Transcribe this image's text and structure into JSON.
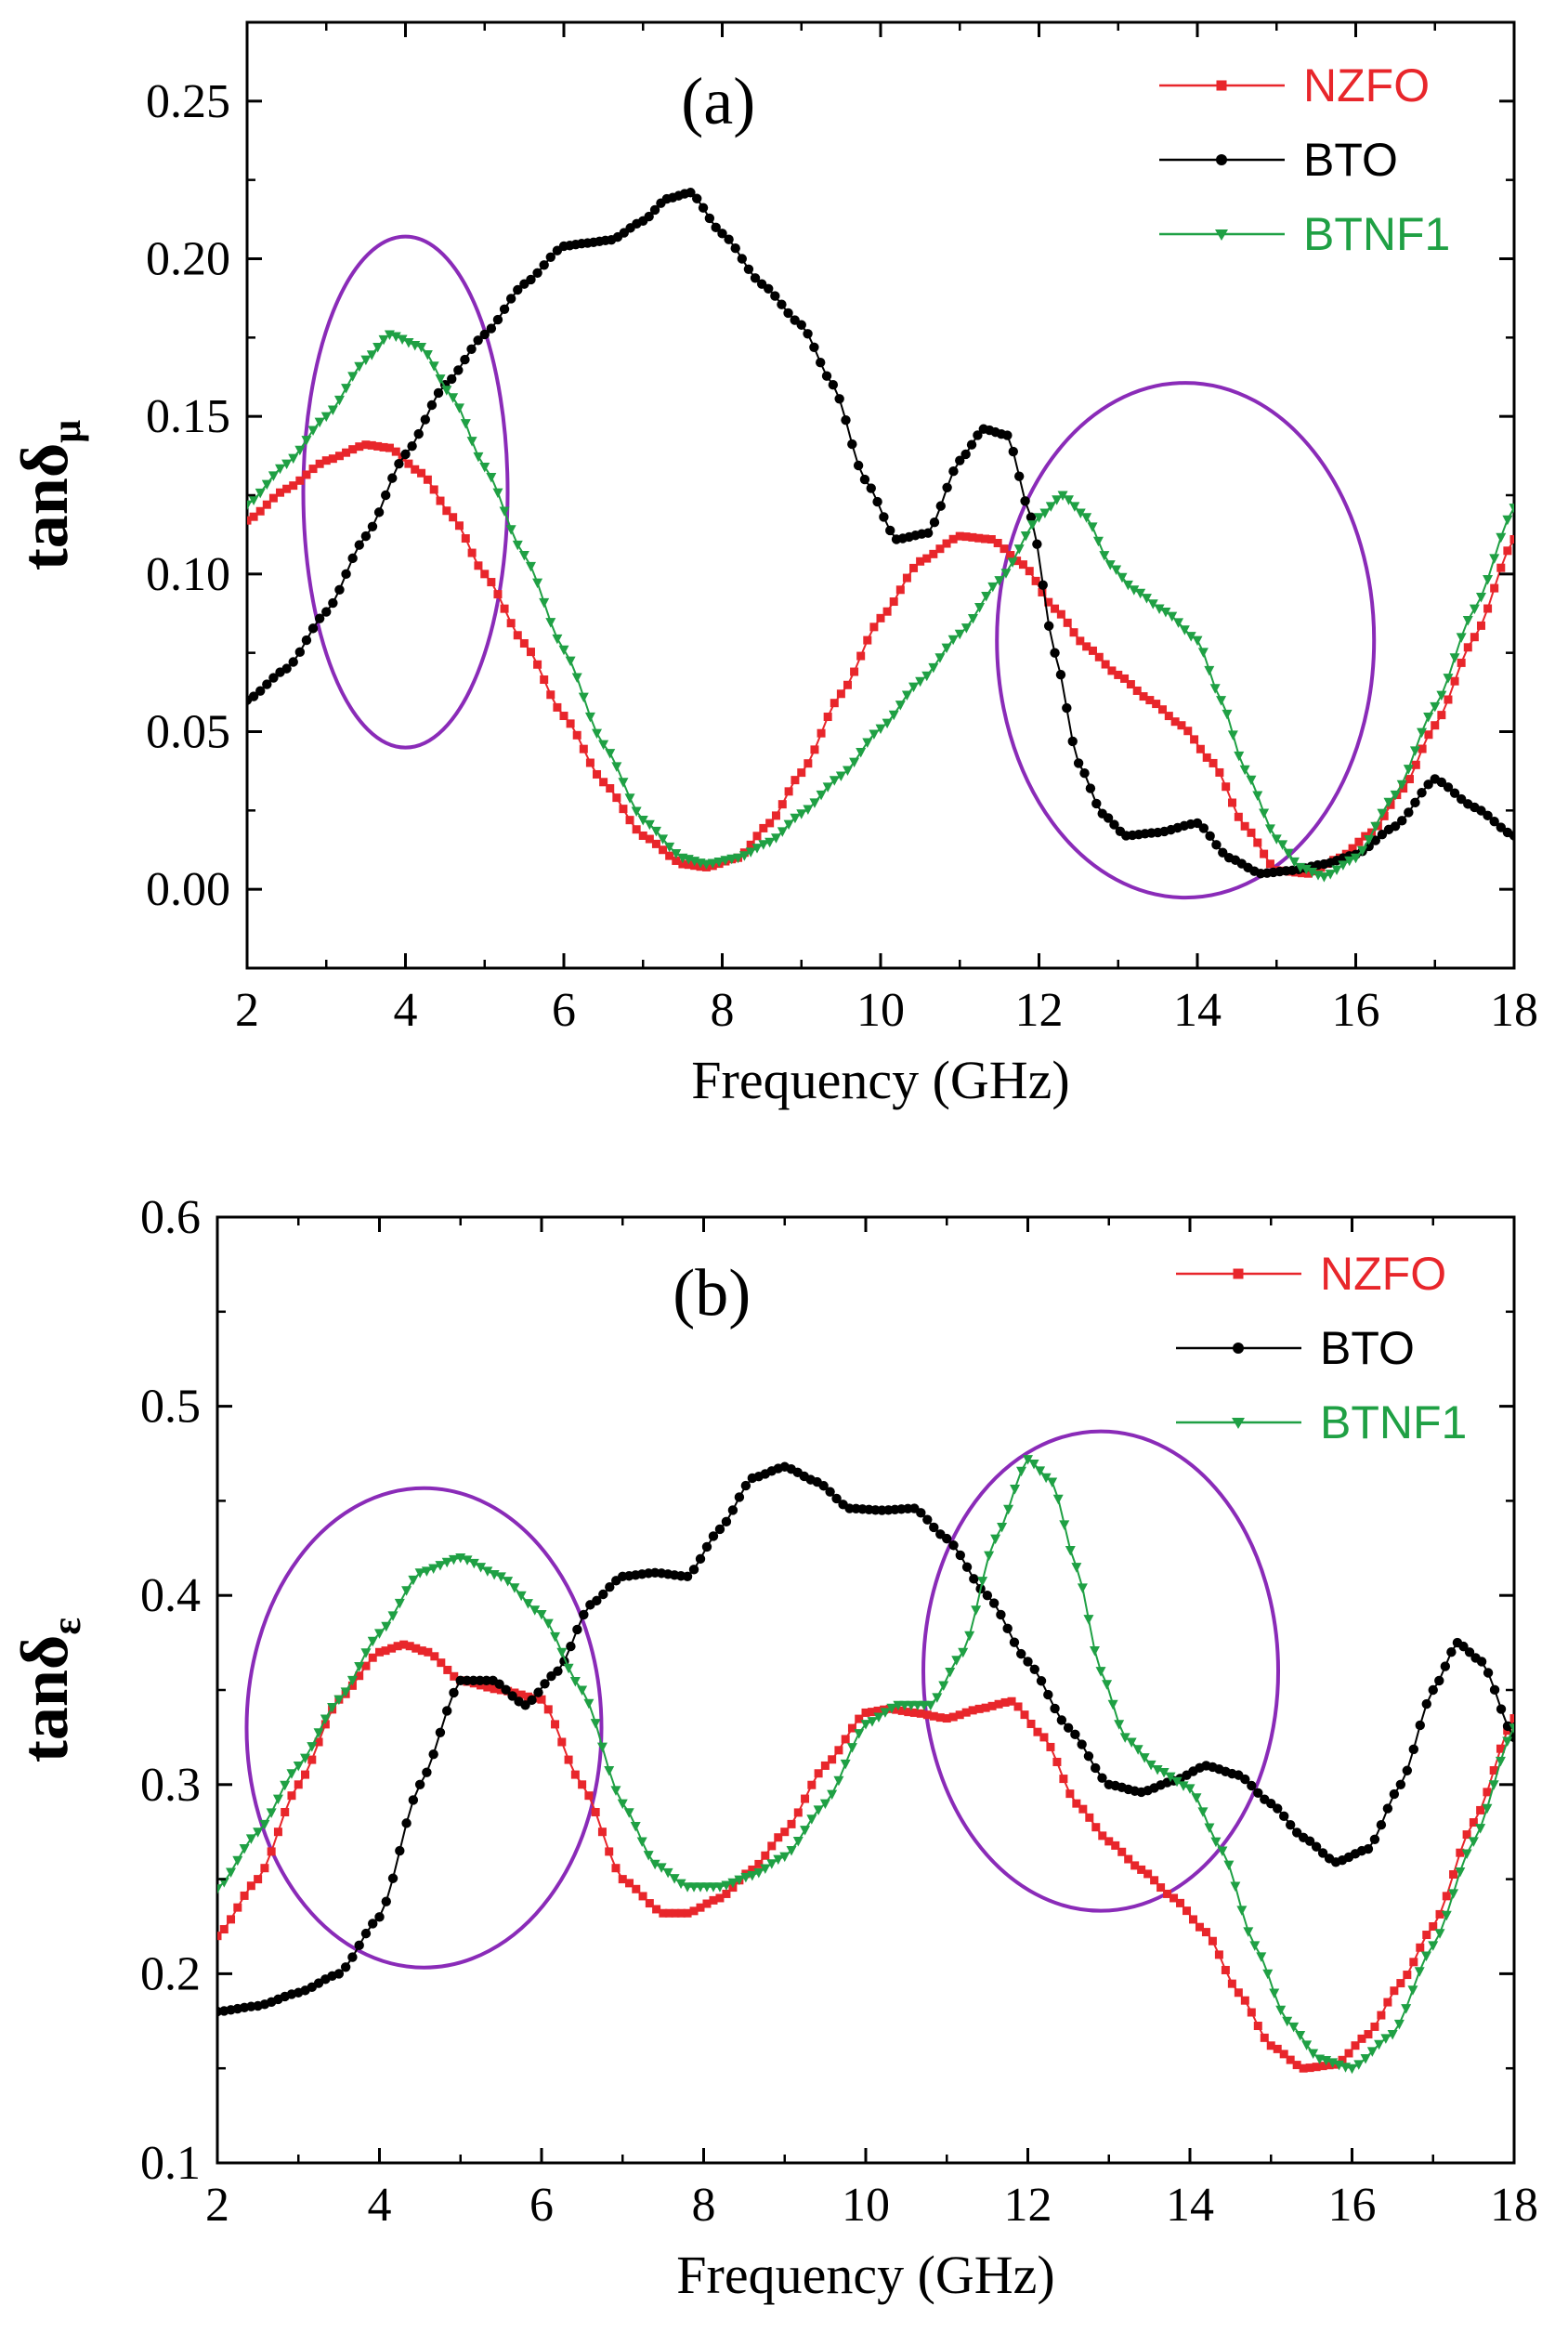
{
  "chart_data": [
    {
      "type": "line",
      "panel_label": "(a)",
      "xlabel": "Frequency (GHz)",
      "ylabel_main": "tanδ",
      "ylabel_sub": "μ",
      "xlim": [
        2,
        18
      ],
      "ylim": [
        -0.025,
        0.275
      ],
      "xticks": [
        2,
        4,
        6,
        8,
        10,
        12,
        14,
        16,
        18
      ],
      "yticks": [
        0.0,
        0.05,
        0.1,
        0.15,
        0.2,
        0.25
      ],
      "ytick_labels": [
        "0.00",
        "0.05",
        "0.10",
        "0.15",
        "0.20",
        "0.25"
      ],
      "grid": false,
      "legend_position": "top-right",
      "series": [
        {
          "name": "NZFO",
          "color": "#e8262b",
          "marker": "square",
          "x": [
            2,
            2.5,
            3,
            3.5,
            3.8,
            4.2,
            4.6,
            5,
            5.5,
            6,
            6.5,
            7,
            7.5,
            7.8,
            8.2,
            8.6,
            9,
            9.5,
            10,
            10.5,
            11,
            11.4,
            11.8,
            12.2,
            12.6,
            13,
            13.4,
            13.8,
            14.2,
            14.6,
            15,
            15.4,
            15.8,
            16.2,
            16.6,
            17,
            17.5,
            18
          ],
          "y": [
            0.117,
            0.127,
            0.136,
            0.141,
            0.14,
            0.132,
            0.118,
            0.1,
            0.078,
            0.055,
            0.034,
            0.017,
            0.008,
            0.007,
            0.01,
            0.021,
            0.037,
            0.062,
            0.086,
            0.104,
            0.112,
            0.111,
            0.103,
            0.089,
            0.077,
            0.068,
            0.06,
            0.052,
            0.04,
            0.02,
            0.006,
            0.005,
            0.01,
            0.018,
            0.032,
            0.052,
            0.08,
            0.111
          ]
        },
        {
          "name": "BTO",
          "color": "#000000",
          "marker": "circle",
          "x": [
            2,
            2.5,
            3,
            3.5,
            4,
            4.5,
            5,
            5.5,
            6,
            6.3,
            6.6,
            7,
            7.3,
            7.6,
            8,
            8.5,
            9,
            9.4,
            9.8,
            10.2,
            10.6,
            11,
            11.3,
            11.6,
            11.9,
            12.2,
            12.5,
            12.8,
            13.1,
            13.5,
            14,
            14.4,
            14.8,
            15.2,
            15.6,
            16,
            16.5,
            17,
            17.5,
            18
          ],
          "y": [
            0.06,
            0.07,
            0.088,
            0.112,
            0.138,
            0.16,
            0.176,
            0.192,
            0.204,
            0.205,
            0.206,
            0.212,
            0.219,
            0.221,
            0.208,
            0.192,
            0.179,
            0.16,
            0.13,
            0.111,
            0.113,
            0.136,
            0.146,
            0.144,
            0.118,
            0.075,
            0.04,
            0.024,
            0.017,
            0.018,
            0.021,
            0.01,
            0.005,
            0.006,
            0.008,
            0.011,
            0.02,
            0.035,
            0.026,
            0.017
          ]
        },
        {
          "name": "BTNF1",
          "color": "#1fa044",
          "marker": "triangle-down",
          "x": [
            2,
            2.5,
            3,
            3.5,
            3.8,
            4.2,
            4.6,
            5,
            5.5,
            6,
            6.5,
            7,
            7.5,
            7.8,
            8.2,
            8.6,
            9,
            9.5,
            10,
            10.5,
            11,
            11.5,
            12,
            12.3,
            12.6,
            12.9,
            13.2,
            13.6,
            14,
            14.3,
            14.6,
            15,
            15.3,
            15.6,
            16,
            16.5,
            17,
            17.5,
            18
          ],
          "y": [
            0.122,
            0.135,
            0.15,
            0.168,
            0.176,
            0.172,
            0.156,
            0.134,
            0.106,
            0.076,
            0.046,
            0.022,
            0.01,
            0.008,
            0.01,
            0.015,
            0.024,
            0.036,
            0.051,
            0.066,
            0.081,
            0.098,
            0.118,
            0.125,
            0.118,
            0.103,
            0.095,
            0.088,
            0.079,
            0.06,
            0.038,
            0.016,
            0.007,
            0.004,
            0.01,
            0.03,
            0.058,
            0.089,
            0.121
          ]
        }
      ]
    },
    {
      "type": "line",
      "panel_label": "(b)",
      "xlabel": "Frequency (GHz)",
      "ylabel_main": "tanδ",
      "ylabel_sub": "ε",
      "xlim": [
        2,
        18
      ],
      "ylim": [
        0.1,
        0.6
      ],
      "xticks": [
        2,
        4,
        6,
        8,
        10,
        12,
        14,
        16,
        18
      ],
      "yticks": [
        0.1,
        0.2,
        0.3,
        0.4,
        0.5,
        0.6
      ],
      "ytick_labels": [
        "0.1",
        "0.2",
        "0.3",
        "0.4",
        "0.5",
        "0.6"
      ],
      "grid": false,
      "legend_position": "top-right",
      "series": [
        {
          "name": "NZFO",
          "color": "#e8262b",
          "marker": "square",
          "x": [
            2,
            2.5,
            3,
            3.5,
            4,
            4.3,
            4.6,
            5,
            5.5,
            6,
            6.5,
            7,
            7.5,
            7.8,
            8.2,
            8.6,
            9,
            9.5,
            10,
            10.3,
            10.6,
            11,
            11.4,
            11.8,
            12.2,
            12.6,
            13,
            13.4,
            13.8,
            14.2,
            14.6,
            15,
            15.4,
            15.8,
            16.2,
            16.6,
            17,
            17.5,
            18
          ],
          "y": [
            0.22,
            0.25,
            0.3,
            0.345,
            0.37,
            0.374,
            0.37,
            0.355,
            0.35,
            0.345,
            0.3,
            0.25,
            0.232,
            0.232,
            0.24,
            0.255,
            0.275,
            0.31,
            0.338,
            0.34,
            0.338,
            0.335,
            0.34,
            0.344,
            0.325,
            0.29,
            0.27,
            0.255,
            0.24,
            0.222,
            0.19,
            0.162,
            0.15,
            0.152,
            0.168,
            0.195,
            0.225,
            0.28,
            0.335
          ]
        },
        {
          "name": "BTO",
          "color": "#000000",
          "marker": "circle",
          "x": [
            2,
            2.5,
            3,
            3.5,
            4,
            4.5,
            5,
            5.4,
            5.8,
            6.2,
            6.6,
            7,
            7.4,
            7.8,
            8.2,
            8.6,
            9,
            9.4,
            9.8,
            10.2,
            10.6,
            11,
            11.5,
            12,
            12.5,
            13,
            13.4,
            13.8,
            14.2,
            14.6,
            15,
            15.4,
            15.8,
            16.2,
            16.6,
            17,
            17.3,
            17.6,
            18
          ],
          "y": [
            0.18,
            0.183,
            0.19,
            0.2,
            0.23,
            0.3,
            0.355,
            0.355,
            0.342,
            0.36,
            0.395,
            0.41,
            0.412,
            0.41,
            0.435,
            0.462,
            0.468,
            0.46,
            0.446,
            0.445,
            0.446,
            0.43,
            0.4,
            0.365,
            0.33,
            0.3,
            0.296,
            0.302,
            0.31,
            0.305,
            0.29,
            0.272,
            0.259,
            0.266,
            0.3,
            0.35,
            0.375,
            0.365,
            0.325
          ]
        },
        {
          "name": "BTNF1",
          "color": "#1fa044",
          "marker": "triangle-down",
          "x": [
            2,
            2.5,
            3,
            3.5,
            4,
            4.5,
            5,
            5.5,
            6,
            6.5,
            7,
            7.4,
            7.8,
            8.2,
            8.6,
            9,
            9.5,
            10,
            10.4,
            10.8,
            11.2,
            11.6,
            12,
            12.3,
            12.6,
            12.9,
            13.2,
            13.6,
            14,
            14.4,
            14.8,
            15.2,
            15.6,
            16,
            16.5,
            17,
            17.5,
            18
          ],
          "y": [
            0.245,
            0.275,
            0.31,
            0.345,
            0.38,
            0.412,
            0.42,
            0.41,
            0.39,
            0.35,
            0.29,
            0.258,
            0.246,
            0.246,
            0.252,
            0.262,
            0.29,
            0.332,
            0.342,
            0.342,
            0.37,
            0.43,
            0.472,
            0.46,
            0.415,
            0.36,
            0.325,
            0.308,
            0.298,
            0.265,
            0.215,
            0.175,
            0.155,
            0.15,
            0.168,
            0.215,
            0.27,
            0.33
          ]
        }
      ]
    }
  ],
  "highlight_ellipses_color": "#8a2bb8"
}
